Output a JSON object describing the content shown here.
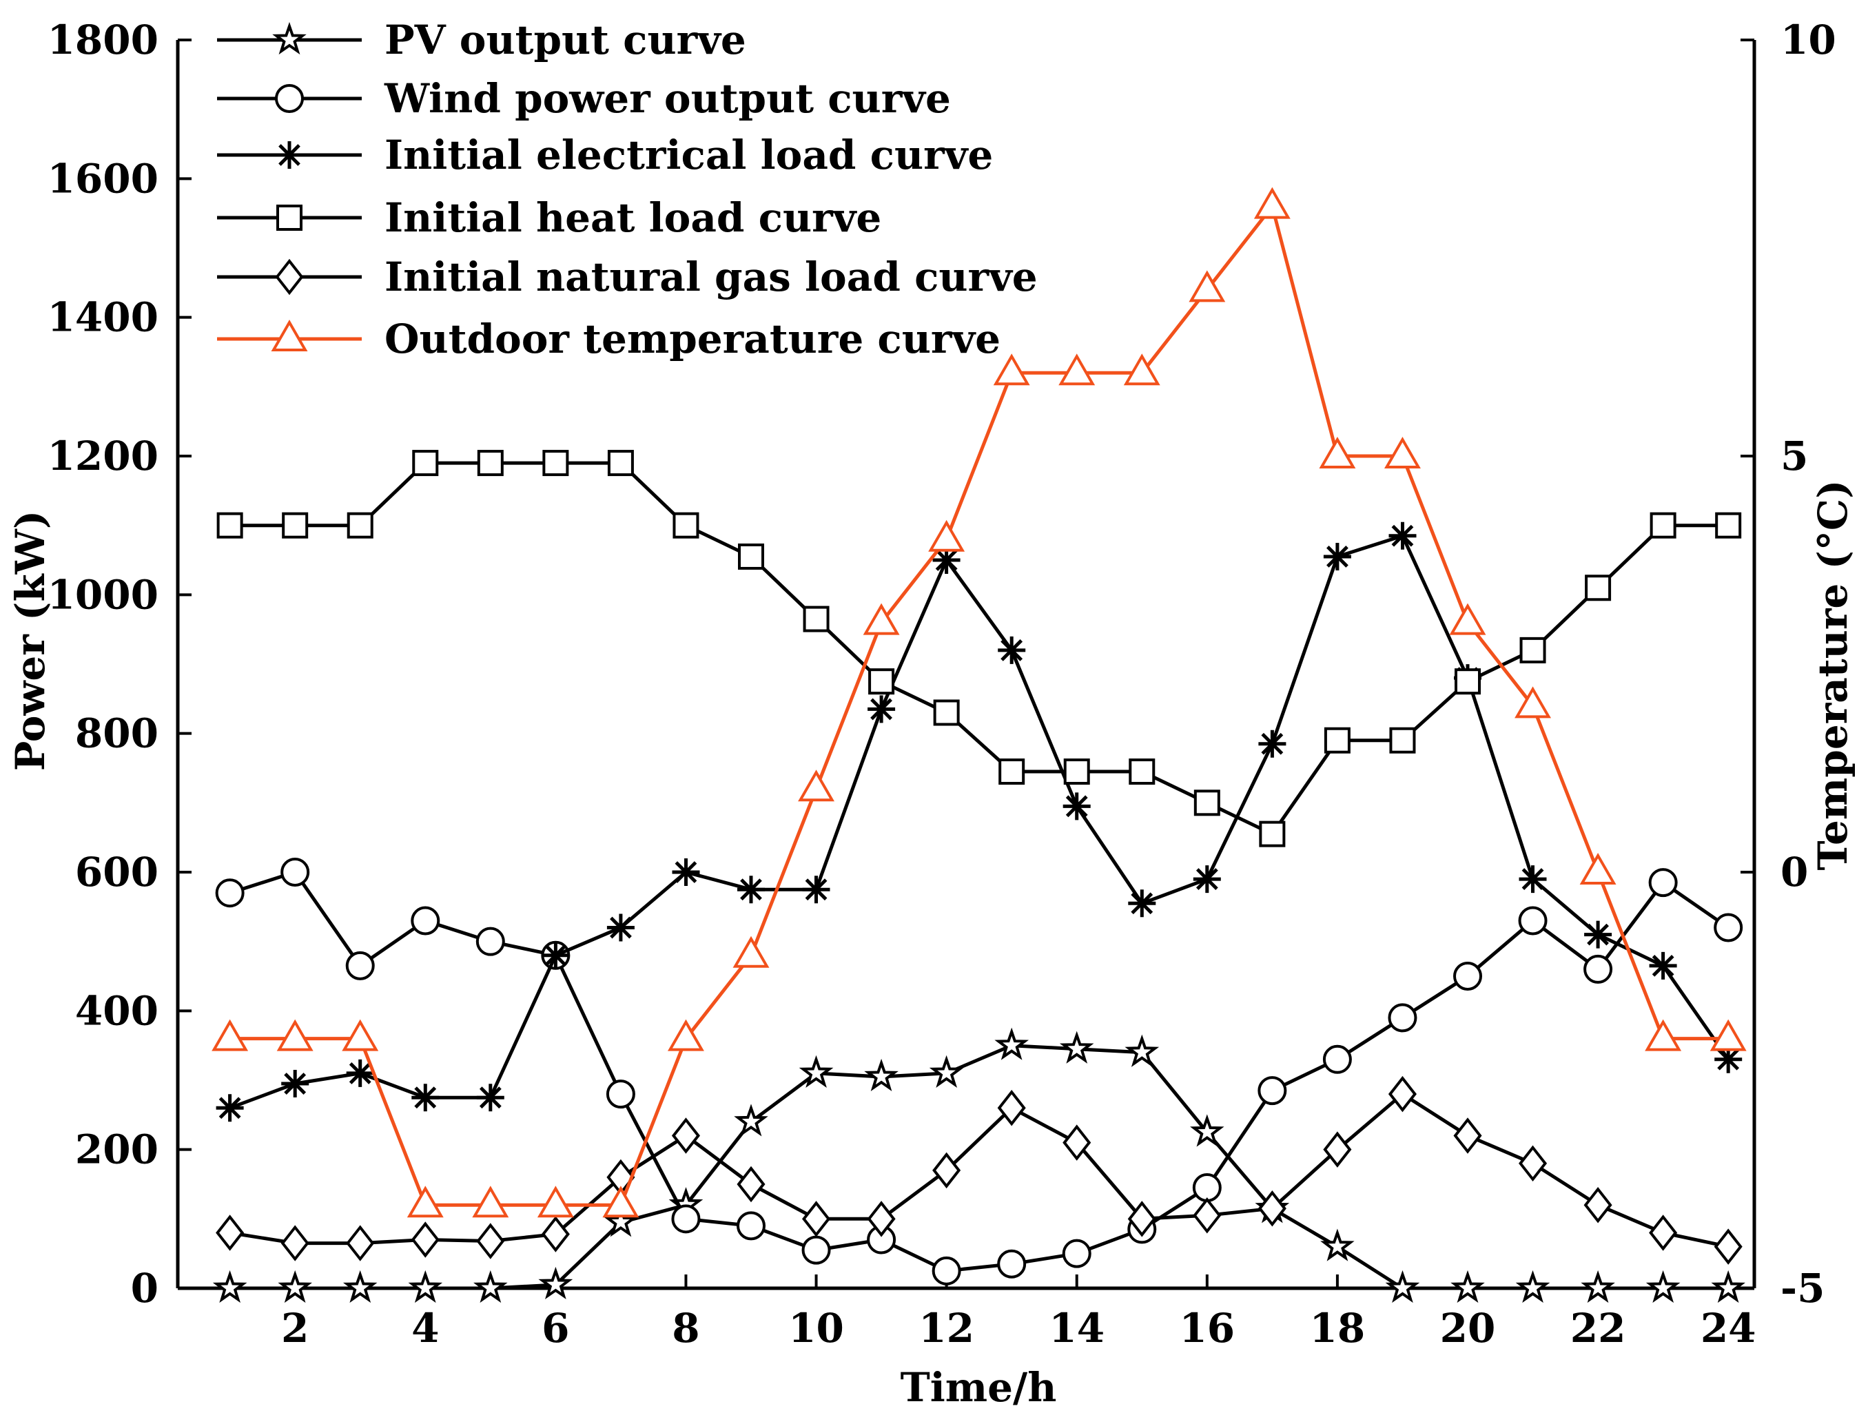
{
  "chart_data": {
    "type": "line",
    "x": [
      1,
      2,
      3,
      4,
      5,
      6,
      7,
      8,
      9,
      10,
      11,
      12,
      13,
      14,
      15,
      16,
      17,
      18,
      19,
      20,
      21,
      22,
      23,
      24
    ],
    "xlabel": "Time/h",
    "ylabel": "Power (kW)",
    "y2label": "Temperature (°C)",
    "xlim": [
      0.2,
      24.4
    ],
    "ylim": [
      0,
      1800
    ],
    "y2lim": [
      -5,
      10
    ],
    "xticks": [
      2,
      4,
      6,
      8,
      10,
      12,
      14,
      16,
      18,
      20,
      22,
      24
    ],
    "yticks": [
      0,
      200,
      400,
      600,
      800,
      1000,
      1200,
      1400,
      1600,
      1800
    ],
    "y2ticks": [
      -5,
      0,
      5,
      10
    ],
    "legend_position": "top-left",
    "colors": {
      "black": "#000000",
      "orange": "#f2511b"
    },
    "series": [
      {
        "name": "PV output curve",
        "axis": "left",
        "marker": "star",
        "color": "#000000",
        "values": [
          0,
          0,
          0,
          0,
          0,
          5,
          95,
          120,
          240,
          310,
          305,
          310,
          350,
          345,
          340,
          225,
          115,
          60,
          0,
          0,
          0,
          0,
          0,
          0
        ]
      },
      {
        "name": "Wind power output curve",
        "axis": "left",
        "marker": "circle",
        "color": "#000000",
        "values": [
          570,
          600,
          465,
          530,
          500,
          480,
          280,
          100,
          90,
          55,
          70,
          25,
          35,
          50,
          85,
          145,
          285,
          330,
          390,
          450,
          530,
          460,
          585,
          520
        ]
      },
      {
        "name": "Initial electrical load curve",
        "axis": "left",
        "marker": "asterisk",
        "color": "#000000",
        "values": [
          260,
          295,
          310,
          275,
          275,
          480,
          520,
          600,
          575,
          575,
          835,
          1050,
          920,
          695,
          555,
          590,
          785,
          1055,
          1085,
          880,
          590,
          510,
          465,
          330
        ]
      },
      {
        "name": "Initial heat load curve",
        "axis": "left",
        "marker": "square",
        "color": "#000000",
        "values": [
          1100,
          1100,
          1100,
          1190,
          1190,
          1190,
          1190,
          1100,
          1055,
          965,
          875,
          830,
          745,
          745,
          745,
          700,
          655,
          790,
          790,
          875,
          920,
          1010,
          1100,
          1100
        ]
      },
      {
        "name": "Initial natural gas load curve",
        "axis": "left",
        "marker": "diamond",
        "color": "#000000",
        "values": [
          80,
          65,
          65,
          70,
          68,
          78,
          160,
          220,
          150,
          100,
          100,
          170,
          260,
          210,
          100,
          105,
          115,
          200,
          280,
          220,
          180,
          120,
          80,
          60
        ]
      },
      {
        "name": "Outdoor temperature curve",
        "axis": "right",
        "marker": "triangle",
        "color": "#f2511b",
        "values": [
          -2,
          -2,
          -2,
          -4,
          -4,
          -4,
          -4,
          -2,
          -1,
          1,
          3,
          4,
          6,
          6,
          6,
          7,
          8,
          5,
          5,
          3,
          2,
          0,
          -2,
          -2
        ]
      }
    ]
  }
}
